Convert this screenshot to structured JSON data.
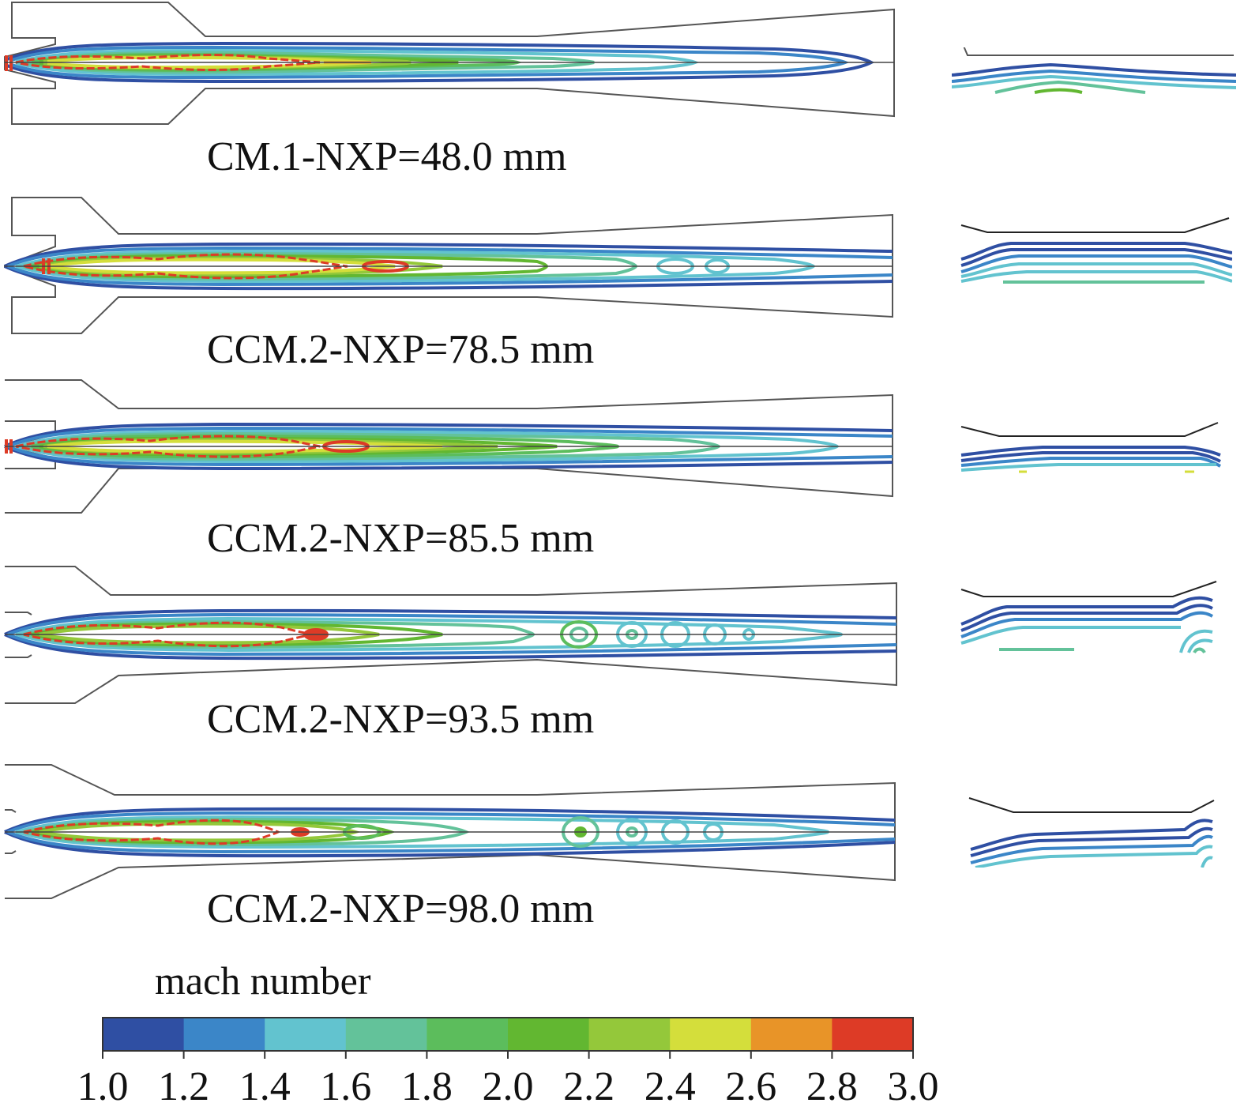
{
  "figure": {
    "cases": [
      {
        "caption": "CM.1-NXP=48.0 mm"
      },
      {
        "caption": "CCM.2-NXP=78.5 mm"
      },
      {
        "caption": "CCM.2-NXP=85.5 mm"
      },
      {
        "caption": "CCM.2-NXP=93.5 mm"
      },
      {
        "caption": "CCM.2-NXP=98.0 mm"
      }
    ],
    "colorbar": {
      "title": "mach number",
      "ticks": [
        "1.0",
        "1.2",
        "1.4",
        "1.6",
        "1.8",
        "2.0",
        "2.2",
        "2.4",
        "2.6",
        "2.8",
        "3.0"
      ],
      "colors": [
        "#2f4fa3",
        "#3b86c8",
        "#62c3cf",
        "#63c29a",
        "#5cbd5c",
        "#62b731",
        "#94c83a",
        "#d4de3b",
        "#e89428",
        "#dd3b26"
      ]
    }
  }
}
